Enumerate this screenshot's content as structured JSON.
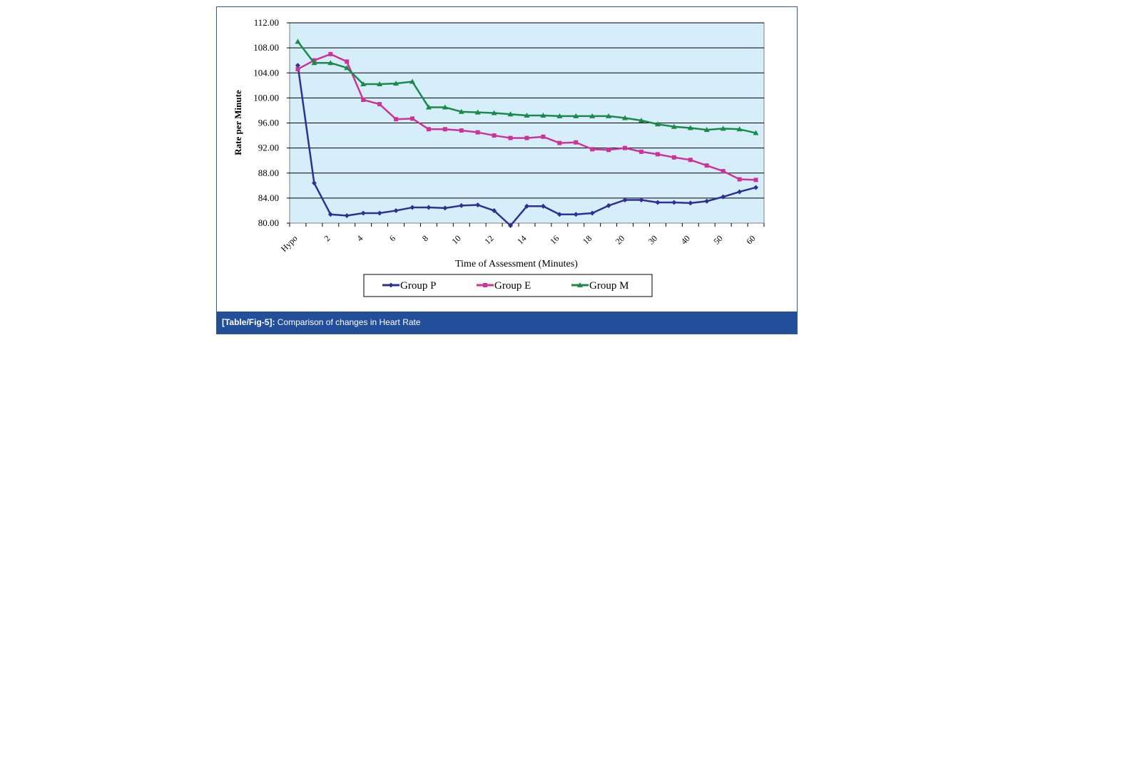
{
  "caption": {
    "label": "[Table/Fig-5]:",
    "text": " Comparison of changes in Heart Rate"
  },
  "chart_data": {
    "type": "line",
    "xlabel": "Time of Assessment (Minutes)",
    "ylabel": "Rate per Minute",
    "ylim": [
      80,
      112
    ],
    "yticks": [
      "80.00",
      "84.00",
      "88.00",
      "92.00",
      "96.00",
      "100.00",
      "104.00",
      "108.00",
      "112.00"
    ],
    "xtick_labels": [
      "Hypo",
      "2",
      "4",
      "6",
      "8",
      "10",
      "12",
      "14",
      "16",
      "18",
      "20",
      "30",
      "40",
      "50",
      "60"
    ],
    "grid": "horizontal",
    "legend_position": "bottom",
    "plot_bg": "#d6eefa",
    "categories": [
      "Hypo",
      "1",
      "2",
      "3",
      "4",
      "5",
      "6",
      "7",
      "8",
      "9",
      "10",
      "11",
      "12",
      "13",
      "14",
      "15",
      "16",
      "17",
      "18",
      "19",
      "20",
      "25",
      "30",
      "35",
      "40",
      "45",
      "50",
      "55",
      "60"
    ],
    "series": [
      {
        "name": "Group P",
        "color": "#2e3192",
        "marker": "diamond",
        "values": [
          105.2,
          86.4,
          81.4,
          81.2,
          81.6,
          81.6,
          82.0,
          82.5,
          82.5,
          82.4,
          82.8,
          82.9,
          82.0,
          79.6,
          82.7,
          82.7,
          81.4,
          81.4,
          81.6,
          82.8,
          83.7,
          83.7,
          83.3,
          83.3,
          83.2,
          83.5,
          84.2,
          85.0,
          85.7
        ]
      },
      {
        "name": "Group E",
        "color": "#cc3399",
        "marker": "square",
        "values": [
          104.6,
          106.0,
          107.0,
          105.8,
          99.7,
          99.0,
          96.6,
          96.7,
          95.0,
          95.0,
          94.8,
          94.5,
          94.0,
          93.6,
          93.6,
          93.8,
          92.8,
          92.9,
          91.8,
          91.7,
          92.0,
          91.4,
          91.0,
          90.5,
          90.1,
          89.2,
          88.3,
          87.0,
          86.9
        ]
      },
      {
        "name": "Group M",
        "color": "#1a8a4a",
        "marker": "triangle",
        "values": [
          109.0,
          105.6,
          105.6,
          104.8,
          102.2,
          102.2,
          102.3,
          102.6,
          98.5,
          98.5,
          97.8,
          97.7,
          97.6,
          97.4,
          97.2,
          97.2,
          97.1,
          97.1,
          97.1,
          97.1,
          96.8,
          96.4,
          95.8,
          95.4,
          95.2,
          94.9,
          95.1,
          95.0,
          94.4
        ]
      }
    ]
  }
}
